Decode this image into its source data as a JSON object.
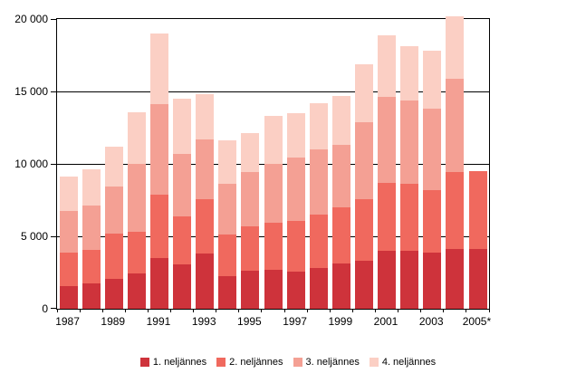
{
  "chart_data": {
    "type": "bar",
    "subtype": "stacked",
    "title": "",
    "xlabel": "",
    "ylabel": "",
    "ylim": [
      0,
      20000
    ],
    "grid": true,
    "legend_position": "bottom",
    "yticks": [
      "0",
      "5 000",
      "10 000",
      "15 000",
      "20 000"
    ],
    "categories": [
      "1987",
      "1988",
      "1989",
      "1990",
      "1991",
      "1992",
      "1993",
      "1994",
      "1995",
      "1996",
      "1997",
      "1998",
      "1999",
      "2000",
      "2001",
      "2002",
      "2003",
      "2004",
      "2005*"
    ],
    "x_tick_labels": [
      "1987",
      "1989",
      "1991",
      "1993",
      "1995",
      "1997",
      "1999",
      "2001",
      "2003",
      "2005*"
    ],
    "series": [
      {
        "name": "1. neljännes",
        "color": "#CE333B",
        "values": [
          1550,
          1750,
          2050,
          2450,
          3500,
          3050,
          3800,
          2250,
          2650,
          2700,
          2550,
          2800,
          3150,
          3300,
          4000,
          4000,
          3850,
          4150,
          4150
        ]
      },
      {
        "name": "2. neljännes",
        "color": "#F0695E",
        "values": [
          2350,
          2300,
          3150,
          2850,
          4400,
          3350,
          3750,
          2850,
          3050,
          3250,
          3500,
          3700,
          3850,
          4250,
          4700,
          4600,
          4350,
          5300,
          5350
        ]
      },
      {
        "name": "3. neljännes",
        "color": "#F4A094",
        "values": [
          2850,
          3050,
          3250,
          4700,
          6200,
          4300,
          4150,
          3500,
          3750,
          4050,
          4400,
          4500,
          4300,
          5300,
          5900,
          5750,
          5600,
          6450,
          0
        ]
      },
      {
        "name": "4. neljännes",
        "color": "#FBCFC4",
        "values": [
          2400,
          2550,
          2750,
          3550,
          4900,
          3800,
          3100,
          3000,
          2700,
          3300,
          3050,
          3200,
          3400,
          4050,
          4300,
          3750,
          4000,
          4300,
          0
        ]
      }
    ],
    "totals": [
      9150,
      9650,
      11200,
      13550,
      19000,
      14500,
      14800,
      11600,
      12150,
      13300,
      13500,
      14200,
      14700,
      16900,
      18900,
      18100,
      17800,
      20200,
      9500
    ]
  }
}
